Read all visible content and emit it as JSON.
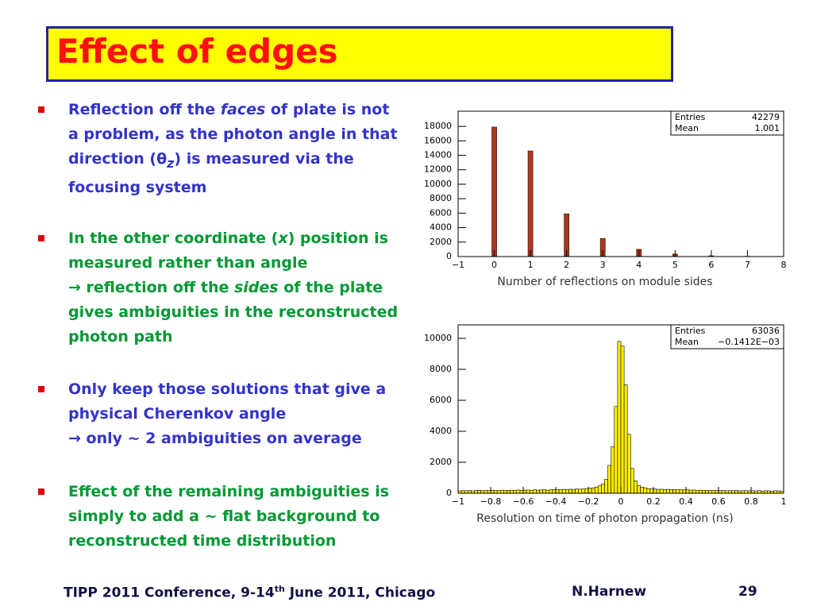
{
  "title": "Effect of edges",
  "bullets": [
    {
      "parts": [
        "Reflection off the ",
        "faces",
        " of plate is not a problem, as the photon angle in that direction (",
        "θ",
        "z",
        ") is measured via the focusing system"
      ]
    },
    {
      "parts": [
        "In the other coordinate (",
        "x",
        ") position is measured rather than angle",
        "→ reflection off the ",
        "sides",
        " of the plate gives ambiguities in the reconstructed photon path"
      ]
    },
    {
      "parts": [
        "Only keep those solutions that give a physical Cherenkov angle",
        "→ only ~ 2 ambiguities on average"
      ]
    },
    {
      "parts": [
        "Effect of the remaining ambiguities is simply to add a ~ flat background to reconstructed time distribution"
      ]
    }
  ],
  "footer": {
    "conference": [
      "TIPP 2011 Conference, 9-14",
      "th",
      " June 2011, Chicago"
    ],
    "author": "N.Harnew",
    "page": 29
  },
  "chart_data": [
    {
      "type": "bar",
      "x_label": "Number of reflections on module sides",
      "x": [
        0,
        1,
        2,
        3,
        4,
        5,
        6,
        7
      ],
      "values": [
        17900,
        14600,
        5900,
        2500,
        1000,
        350,
        100,
        30
      ],
      "color": "#a83a22",
      "xlim": [
        -1,
        8
      ],
      "xticks": [
        {
          "value": -1,
          "label": "−1"
        },
        0,
        1,
        2,
        3,
        4,
        5,
        6,
        7,
        8
      ],
      "ylim": [
        0,
        20100
      ],
      "yticks": [
        0,
        2000,
        4000,
        6000,
        8000,
        10000,
        12000,
        14000,
        16000,
        18000
      ],
      "stats": [
        {
          "label": "Entries",
          "value": "42279"
        },
        {
          "label": "Mean",
          "value": "1.001"
        }
      ]
    },
    {
      "type": "histogram",
      "x_label": "Resolution on time of photon propagation  (ns)",
      "bins": [
        -1,
        -0.98,
        -0.96,
        -0.94,
        -0.92,
        -0.9,
        -0.88,
        -0.86,
        -0.84,
        -0.82,
        -0.8,
        -0.78,
        -0.76,
        -0.74,
        -0.72,
        -0.7,
        -0.68,
        -0.66,
        -0.64,
        -0.62,
        -0.6,
        -0.58,
        -0.56,
        -0.54,
        -0.52,
        -0.5,
        -0.48,
        -0.46,
        -0.44,
        -0.42,
        -0.4,
        -0.38,
        -0.36,
        -0.34,
        -0.32,
        -0.3,
        -0.28,
        -0.26,
        -0.24,
        -0.22,
        -0.2,
        -0.18,
        -0.16,
        -0.14,
        -0.12,
        -0.1,
        -0.08,
        -0.06,
        -0.04,
        -0.02,
        0,
        0.02,
        0.04,
        0.06,
        0.08,
        0.1,
        0.12,
        0.14,
        0.16,
        0.18,
        0.2,
        0.22,
        0.24,
        0.26,
        0.28,
        0.3,
        0.32,
        0.34,
        0.36,
        0.38,
        0.4,
        0.42,
        0.44,
        0.46,
        0.48,
        0.5,
        0.52,
        0.54,
        0.56,
        0.58,
        0.6,
        0.62,
        0.64,
        0.66,
        0.68,
        0.7,
        0.72,
        0.74,
        0.76,
        0.78,
        0.8,
        0.82,
        0.84,
        0.86,
        0.88,
        0.9,
        0.92,
        0.94,
        0.96,
        0.98,
        1
      ],
      "values": [
        150,
        170,
        160,
        180,
        150,
        170,
        190,
        160,
        180,
        170,
        180,
        190,
        170,
        200,
        180,
        190,
        200,
        180,
        210,
        190,
        200,
        210,
        190,
        220,
        200,
        210,
        230,
        200,
        220,
        240,
        230,
        220,
        250,
        240,
        260,
        250,
        270,
        260,
        280,
        300,
        320,
        350,
        400,
        480,
        600,
        900,
        1800,
        3000,
        5600,
        9800,
        9500,
        7000,
        3800,
        1600,
        800,
        500,
        400,
        350,
        300,
        280,
        270,
        250,
        260,
        240,
        250,
        230,
        240,
        220,
        230,
        210,
        220,
        200,
        210,
        190,
        200,
        190,
        180,
        190,
        170,
        180,
        170,
        180,
        160,
        170,
        160,
        170,
        150,
        160,
        170,
        150,
        160,
        150,
        170,
        140,
        160,
        150,
        140,
        160,
        150,
        140
      ],
      "color": "#ffee00",
      "xlim": [
        -1,
        1
      ],
      "xticks": [
        {
          "value": -1,
          "label": "−1"
        },
        {
          "value": -0.8,
          "label": "−0.8"
        },
        {
          "value": -0.6,
          "label": "−0.6"
        },
        {
          "value": -0.4,
          "label": "−0.4"
        },
        {
          "value": -0.2,
          "label": "−0.2"
        },
        0,
        0.2,
        0.4,
        0.6,
        0.8,
        1
      ],
      "ylim": [
        0,
        10870
      ],
      "yticks": [
        0,
        2000,
        4000,
        6000,
        8000,
        10000
      ],
      "stats": [
        {
          "label": "Entries",
          "value": "63036"
        },
        {
          "label": "Mean",
          "value": "−0.1412E−03"
        }
      ]
    }
  ]
}
